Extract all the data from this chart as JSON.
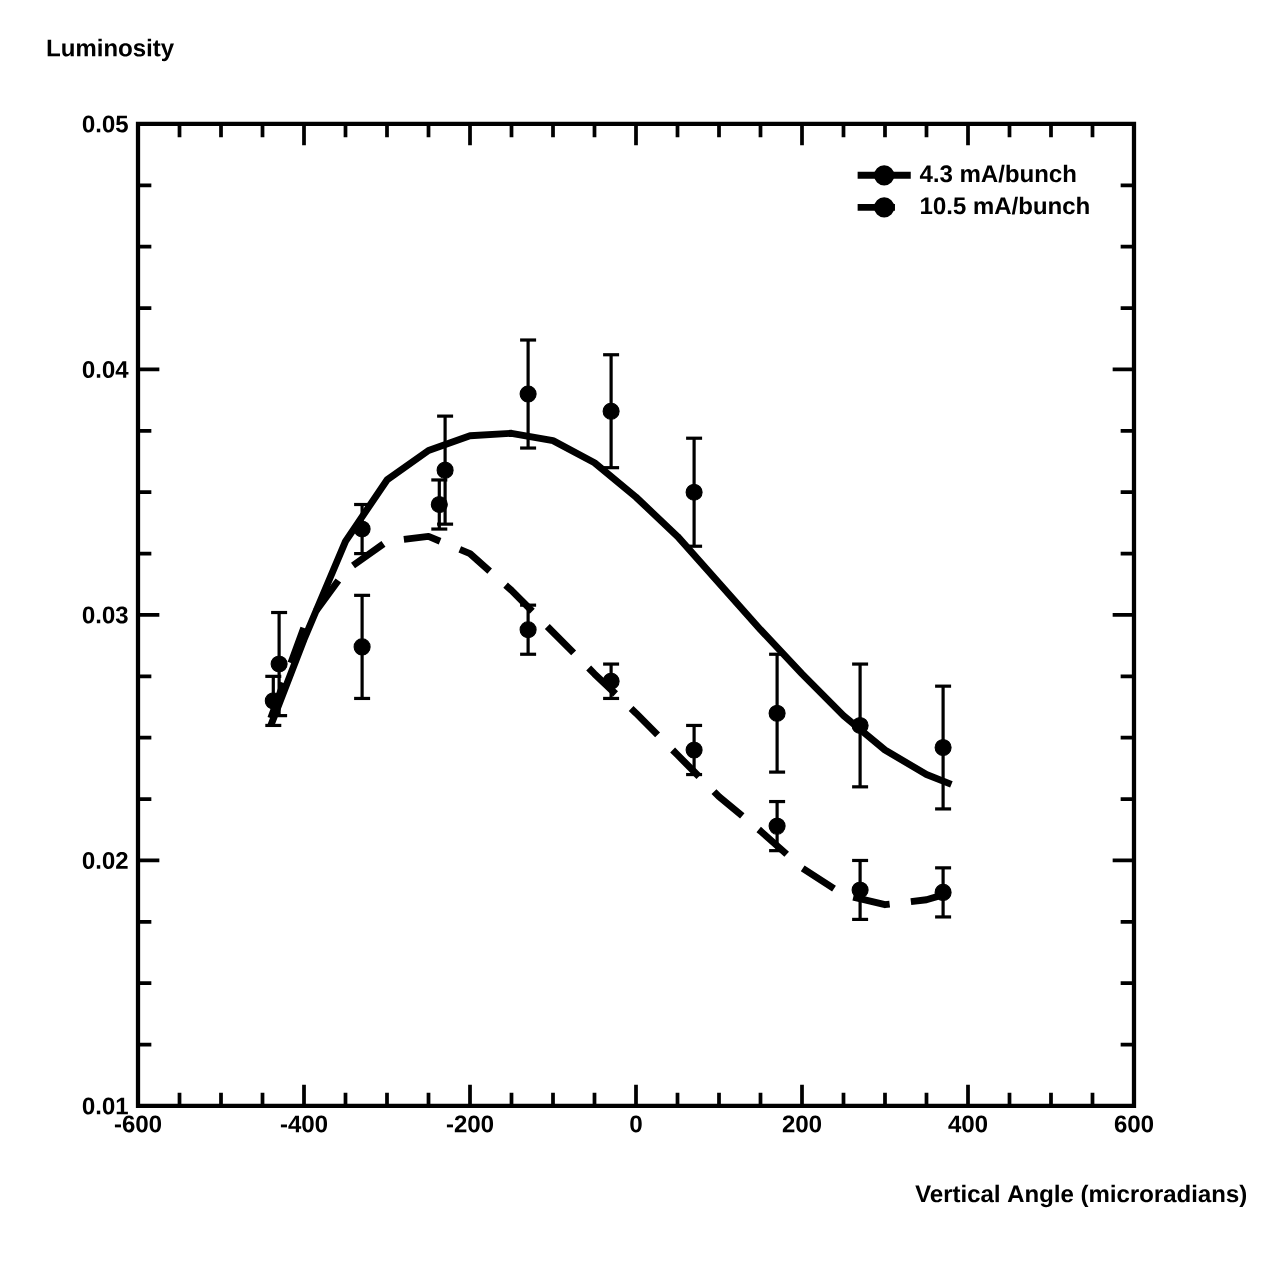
{
  "chart_data": {
    "type": "scatter",
    "xlabel": "Vertical Angle (microradians)",
    "ylabel": "Luminosity",
    "xlim": [
      -600,
      600
    ],
    "xticks": [
      -600,
      -400,
      -200,
      0,
      200,
      400,
      600
    ],
    "ylim": [
      0.01,
      0.05
    ],
    "yticks": [
      0.01,
      0.02,
      0.03,
      0.04,
      0.05
    ],
    "legend": "top right",
    "marker": "circle",
    "grid": false,
    "series": [
      {
        "name": "4.3 mA/bunch",
        "type": "line",
        "marker": "none",
        "line_style": "solid",
        "color": "#000000",
        "x": [
          -440,
          -400,
          -350,
          -300,
          -250,
          -200,
          -150,
          -100,
          -50,
          0,
          50,
          100,
          150,
          200,
          250,
          300,
          350,
          380
        ],
        "values": [
          0.0255,
          0.029,
          0.033,
          0.0355,
          0.0367,
          0.0373,
          0.0374,
          0.0371,
          0.0362,
          0.0348,
          0.0332,
          0.0313,
          0.0294,
          0.0276,
          0.0259,
          0.0245,
          0.0235,
          0.0231
        ]
      },
      {
        "name": "10.5 mA/bunch",
        "type": "line",
        "marker": "none",
        "line_style": "dashed",
        "color": "#000000",
        "x": [
          -440,
          -400,
          -350,
          -300,
          -250,
          -200,
          -150,
          -100,
          -50,
          0,
          50,
          100,
          150,
          200,
          250,
          300,
          350,
          380
        ],
        "values": [
          0.0258,
          0.0295,
          0.0318,
          0.033,
          0.0332,
          0.0325,
          0.031,
          0.0293,
          0.0276,
          0.026,
          0.0243,
          0.0226,
          0.0212,
          0.0197,
          0.0186,
          0.0182,
          0.0184,
          0.0187
        ]
      },
      {
        "color": "#000000",
        "x": [
          -430,
          -330,
          -230,
          -130,
          -30,
          70,
          170,
          270,
          370
        ],
        "values": [
          0.028,
          0.0335,
          0.0359,
          0.039,
          0.0383,
          0.035,
          0.026,
          0.0255,
          0.0246
        ],
        "errors": [
          0.0021,
          0.001,
          0.0022,
          0.0022,
          0.0023,
          0.0022,
          0.0024,
          0.0025,
          0.0025
        ]
      },
      {
        "color": "#000000",
        "x": [
          -437,
          -330,
          -237,
          -130,
          -30,
          70,
          170,
          270,
          370
        ],
        "values": [
          0.0265,
          0.0287,
          0.0345,
          0.0294,
          0.0273,
          0.0245,
          0.0214,
          0.0188,
          0.0187
        ],
        "errors": [
          0.001,
          0.0021,
          0.001,
          0.001,
          0.0007,
          0.001,
          0.001,
          0.0012,
          0.001
        ]
      }
    ]
  }
}
